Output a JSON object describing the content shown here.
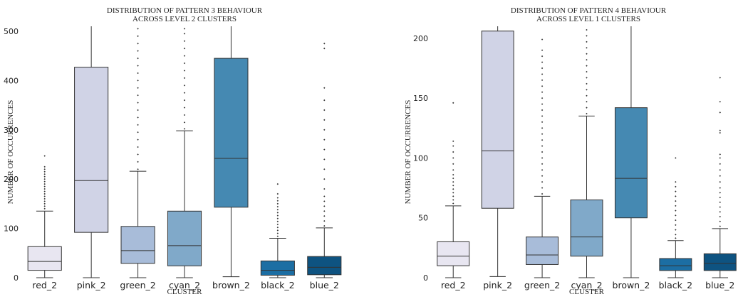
{
  "chart_data": [
    {
      "type": "box",
      "title": [
        "DISTRIBUTION OF PATTERN 3 BEHAVIOUR",
        "ACROSS LEVEL 2 CLUSTERS"
      ],
      "xlabel": "CLUSTER",
      "ylabel": "NUMBER OF OCCURRENCES",
      "ylim": [
        0,
        510
      ],
      "yticks": [
        0,
        100,
        200,
        300,
        400,
        500
      ],
      "categories": [
        "red_2",
        "pink_2",
        "green_2",
        "cyan_2",
        "brown_2",
        "black_2",
        "blue_2"
      ],
      "colors": [
        "#e8e6f1",
        "#d0d3e6",
        "#a8bcd9",
        "#80a9c9",
        "#4589b2",
        "#1c6ea3",
        "#0e5381"
      ],
      "boxes": [
        {
          "whislo": 0,
          "q1": 15,
          "med": 33,
          "q3": 63,
          "whishi": 135,
          "fliers": [
            140,
            145,
            150,
            155,
            160,
            165,
            170,
            175,
            180,
            185,
            190,
            195,
            200,
            205,
            210,
            215,
            220,
            225,
            247
          ]
        },
        {
          "whislo": 0,
          "q1": 92,
          "med": 197,
          "q3": 427,
          "whishi": 510,
          "fliers": []
        },
        {
          "whislo": 0,
          "q1": 29,
          "med": 55,
          "q3": 104,
          "whishi": 216,
          "fliers": [
            220,
            235,
            250,
            265,
            280,
            295,
            310,
            325,
            340,
            355,
            370,
            385,
            400,
            415,
            430,
            445,
            460,
            475,
            490,
            505
          ]
        },
        {
          "whislo": 0,
          "q1": 24,
          "med": 65,
          "q3": 135,
          "whishi": 298,
          "fliers": [
            302,
            315,
            330,
            345,
            360,
            375,
            390,
            405,
            420,
            435,
            450,
            465,
            480,
            495,
            505
          ]
        },
        {
          "whislo": 2,
          "q1": 143,
          "med": 242,
          "q3": 445,
          "whishi": 510,
          "fliers": []
        },
        {
          "whislo": 0,
          "q1": 5,
          "med": 15,
          "q3": 34,
          "whishi": 80,
          "fliers": [
            84,
            90,
            96,
            102,
            108,
            114,
            120,
            126,
            132,
            138,
            144,
            150,
            156,
            162,
            170,
            190
          ]
        },
        {
          "whislo": 0,
          "q1": 6,
          "med": 21,
          "q3": 43,
          "whishi": 101,
          "fliers": [
            105,
            115,
            125,
            135,
            145,
            155,
            165,
            180,
            200,
            220,
            240,
            260,
            280,
            300,
            320,
            340,
            360,
            385,
            465,
            475
          ]
        }
      ]
    },
    {
      "type": "box",
      "title": [
        "DISTRIBUTION OF PATTERN 4 BEHAVIOUR",
        "ACROSS LEVEL 1 CLUSTERS"
      ],
      "xlabel": "CLUSTER",
      "ylabel": "NUMBER OF OCCURRENCES",
      "ylim": [
        0,
        210
      ],
      "yticks": [
        0,
        50,
        100,
        150,
        200
      ],
      "categories": [
        "red_2",
        "pink_2",
        "green_2",
        "cyan_2",
        "brown_2",
        "black_2",
        "blue_2"
      ],
      "colors": [
        "#e8e6f1",
        "#d0d3e6",
        "#a8bcd9",
        "#80a9c9",
        "#4589b2",
        "#1c6ea3",
        "#0e5381"
      ],
      "boxes": [
        {
          "whislo": 0,
          "q1": 10,
          "med": 18,
          "q3": 30,
          "whishi": 60,
          "fliers": [
            62,
            65,
            68,
            71,
            74,
            77,
            80,
            83,
            86,
            90,
            95,
            100,
            105,
            110,
            114,
            146
          ]
        },
        {
          "whislo": 1,
          "q1": 58,
          "med": 106,
          "q3": 206,
          "whishi": 210,
          "fliers": []
        },
        {
          "whislo": 0,
          "q1": 11,
          "med": 19,
          "q3": 34,
          "whishi": 68,
          "fliers": [
            70,
            75,
            80,
            85,
            90,
            95,
            100,
            105,
            110,
            115,
            120,
            125,
            130,
            135,
            140,
            145,
            150,
            155,
            160,
            165,
            170,
            175,
            180,
            185,
            190,
            199
          ]
        },
        {
          "whislo": 0,
          "q1": 18,
          "med": 34,
          "q3": 65,
          "whishi": 135,
          "fliers": [
            137,
            142,
            147,
            152,
            157,
            162,
            167,
            172,
            177,
            182,
            187,
            192,
            197,
            202,
            207
          ]
        },
        {
          "whislo": 0,
          "q1": 50,
          "med": 83,
          "q3": 142,
          "whishi": 210,
          "fliers": []
        },
        {
          "whislo": 0,
          "q1": 6,
          "med": 10,
          "q3": 16,
          "whishi": 31,
          "fliers": [
            33,
            36,
            40,
            44,
            48,
            52,
            56,
            60,
            64,
            68,
            72,
            76,
            80,
            100
          ]
        },
        {
          "whislo": 0,
          "q1": 6,
          "med": 12,
          "q3": 20,
          "whishi": 41,
          "fliers": [
            43,
            47,
            51,
            55,
            59,
            63,
            67,
            71,
            75,
            80,
            85,
            90,
            95,
            100,
            103,
            121,
            123,
            138,
            147,
            167
          ]
        }
      ]
    }
  ]
}
